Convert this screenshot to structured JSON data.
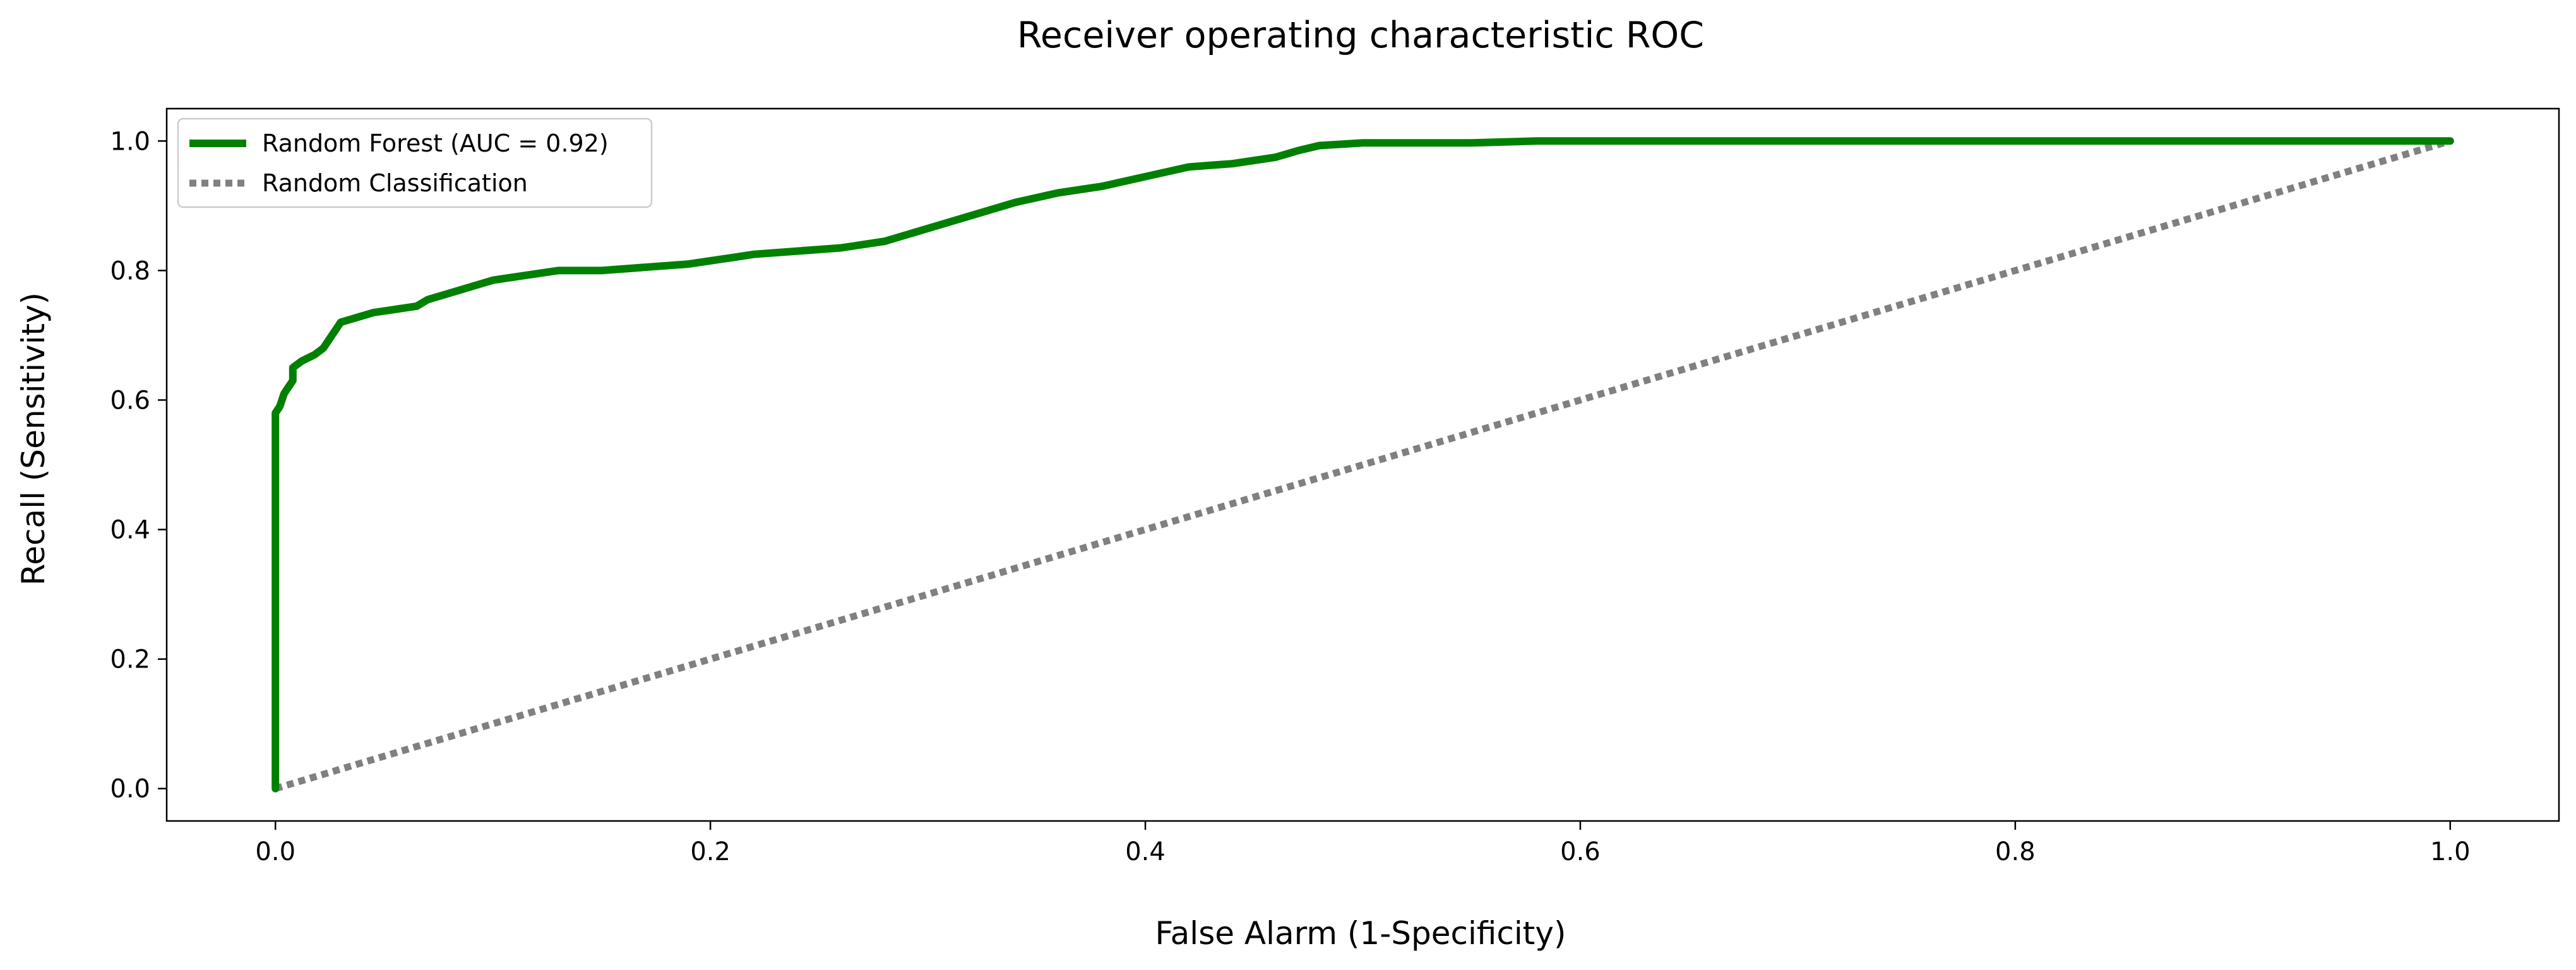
{
  "chart_data": {
    "type": "line",
    "title": "Receiver operating characteristic ROC",
    "xlabel": "False Alarm (1-Specificity)",
    "ylabel": "Recall (Sensitivity)",
    "xlim": [
      -0.05,
      1.05
    ],
    "ylim": [
      -0.05,
      1.05
    ],
    "xticks": [
      0.0,
      0.2,
      0.4,
      0.6,
      0.8,
      1.0
    ],
    "xtick_labels": [
      "0.0",
      "0.2",
      "0.4",
      "0.6",
      "0.8",
      "1.0"
    ],
    "yticks": [
      0.0,
      0.2,
      0.4,
      0.6,
      0.8,
      1.0
    ],
    "ytick_labels": [
      "0.0",
      "0.2",
      "0.4",
      "0.6",
      "0.8",
      "1.0"
    ],
    "grid": false,
    "legend_position": "top-left",
    "series": [
      {
        "name": "Random Forest (AUC = 0.92)",
        "color": "#008000",
        "style": "solid",
        "x": [
          0.0,
          0.0,
          0.002,
          0.004,
          0.006,
          0.008,
          0.008,
          0.012,
          0.018,
          0.022,
          0.026,
          0.03,
          0.035,
          0.045,
          0.055,
          0.065,
          0.07,
          0.08,
          0.09,
          0.1,
          0.11,
          0.13,
          0.15,
          0.17,
          0.19,
          0.21,
          0.22,
          0.24,
          0.26,
          0.28,
          0.3,
          0.32,
          0.34,
          0.36,
          0.38,
          0.4,
          0.42,
          0.44,
          0.46,
          0.47,
          0.48,
          0.5,
          0.55,
          0.58,
          0.7,
          0.85,
          1.0
        ],
        "y": [
          0.0,
          0.58,
          0.59,
          0.61,
          0.62,
          0.63,
          0.65,
          0.66,
          0.67,
          0.68,
          0.7,
          0.72,
          0.725,
          0.735,
          0.74,
          0.745,
          0.755,
          0.765,
          0.775,
          0.785,
          0.79,
          0.8,
          0.8,
          0.805,
          0.81,
          0.82,
          0.825,
          0.83,
          0.835,
          0.845,
          0.865,
          0.885,
          0.905,
          0.92,
          0.93,
          0.945,
          0.96,
          0.965,
          0.975,
          0.985,
          0.993,
          0.997,
          0.997,
          1.0,
          1.0,
          1.0,
          1.0
        ]
      },
      {
        "name": "Random Classification",
        "color": "#808080",
        "style": "dotted",
        "x": [
          0.0,
          1.0
        ],
        "y": [
          0.0,
          1.0
        ]
      }
    ]
  }
}
